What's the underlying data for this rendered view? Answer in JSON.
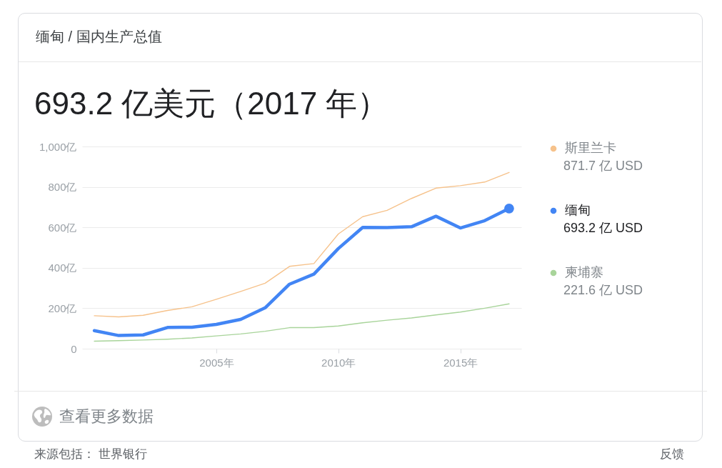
{
  "chart_data": {
    "type": "line",
    "title": "缅甸 / 国内生产总值",
    "subtitle": "693.2 亿美元（2017 年）",
    "x": [
      2000,
      2001,
      2002,
      2003,
      2004,
      2005,
      2006,
      2007,
      2008,
      2009,
      2010,
      2011,
      2012,
      2013,
      2014,
      2015,
      2016,
      2017
    ],
    "series": [
      {
        "name": "斯里兰卡",
        "color": "#f6c28b",
        "values": [
          163,
          157,
          165,
          189,
          207,
          244,
          283,
          324,
          407,
          421,
          567,
          653,
          684,
          743,
          794,
          806,
          824,
          871.7
        ]
      },
      {
        "name": "缅甸",
        "color": "#4285f4",
        "values": [
          89,
          65,
          68,
          105,
          106,
          120,
          145,
          202,
          319,
          369,
          495,
          600,
          599,
          603,
          655,
          597,
          633,
          693.2
        ]
      },
      {
        "name": "柬埔寨",
        "color": "#a8d49a",
        "values": [
          37,
          40,
          43,
          47,
          53,
          63,
          73,
          86,
          104,
          104,
          112,
          128,
          141,
          152,
          167,
          181,
          200,
          221.6
        ]
      },
      {
        "type": "scatter",
        "color": "#4285f4",
        "x": [
          2017
        ],
        "values": [
          693.2
        ]
      }
    ],
    "xlim": [
      1999.5,
      2017.5
    ],
    "xticks": [
      {
        "value": 2005,
        "label": "2005年"
      },
      {
        "value": 2010,
        "label": "2010年"
      },
      {
        "value": 2015,
        "label": "2015年"
      }
    ],
    "ylim": [
      0,
      1000
    ],
    "yticks": [
      0,
      {
        "value": 200,
        "label": "200亿"
      },
      {
        "value": 400,
        "label": "400亿"
      },
      {
        "value": 600,
        "label": "600亿"
      },
      {
        "value": 800,
        "label": "800亿"
      },
      {
        "value": 1000,
        "label": "1,000亿"
      }
    ],
    "grid": "y",
    "legend": "right",
    "annotations": [
      "871.7 亿 USD",
      "693.2 亿 USD",
      "221.6 亿 USD",
      "查看更多数据",
      "来源包括： 世界银行",
      "反馈"
    ]
  }
}
